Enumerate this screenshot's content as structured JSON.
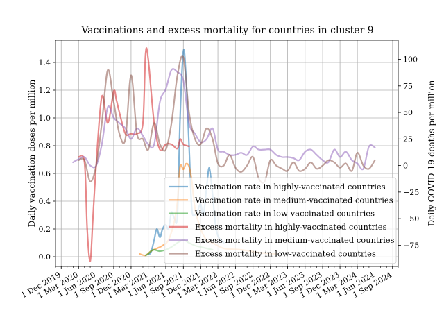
{
  "chart_data": {
    "type": "line",
    "title": "Vaccinations and excess mortality for countries in cluster 9",
    "ylabel_left": "Daily vaccination doses per million",
    "ylabel_right": "Daily COVID-19 deaths per million",
    "ylim_left": [
      -0.07,
      1.56
    ],
    "ylim_right": [
      -95,
      118
    ],
    "xlim": [
      "2019-11-01",
      "2024-10-01"
    ],
    "grid": true,
    "legend_position": "center-right",
    "x_ticks": [
      "2019-12-01",
      "2020-03-01",
      "2020-06-01",
      "2020-09-01",
      "2020-12-01",
      "2021-03-01",
      "2021-06-01",
      "2021-09-01",
      "2021-12-01",
      "2022-03-01",
      "2022-06-01",
      "2022-09-01",
      "2022-12-01",
      "2023-03-01",
      "2023-06-01",
      "2023-09-01",
      "2023-12-01",
      "2024-03-01",
      "2024-06-01",
      "2024-09-01"
    ],
    "x_tick_labels": [
      "1 Dec 2019",
      "1 Mar 2020",
      "1 Jun 2020",
      "1 Sep 2020",
      "1 Dec 2020",
      "1 Mar 2021",
      "1 Jun 2021",
      "1 Sep 2021",
      "1 Dec 2021",
      "1 Mar 2022",
      "1 Jun 2022",
      "1 Sep 2022",
      "1 Dec 2022",
      "1 Mar 2023",
      "1 Jun 2023",
      "1 Sep 2023",
      "1 Dec 2023",
      "1 Mar 2024",
      "1 Jun 2024",
      "1 Sep 2024"
    ],
    "y_ticks_left": [
      0.0,
      0.2,
      0.4,
      0.6,
      0.8,
      1.0,
      1.2,
      1.4
    ],
    "y_tick_labels_left": [
      "0.0",
      "0.2",
      "0.4",
      "0.6",
      "0.8",
      "1.0",
      "1.2",
      "1.4"
    ],
    "y_ticks_right": [
      -75,
      -50,
      -25,
      0,
      25,
      50,
      75,
      100
    ],
    "y_tick_labels_right": [
      "−75",
      "−50",
      "−25",
      "0",
      "25",
      "50",
      "75",
      "100"
    ],
    "series": [
      {
        "name": "Vaccination rate in highly-vaccinated countries",
        "color": "#1f77b4",
        "axis": "left",
        "points": [
          [
            "2021-03-01",
            0.02
          ],
          [
            "2021-03-15",
            0.03
          ],
          [
            "2021-04-01",
            0.12
          ],
          [
            "2021-04-15",
            0.2
          ],
          [
            "2021-05-01",
            0.14
          ],
          [
            "2021-05-15",
            0.2
          ],
          [
            "2021-06-01",
            0.23
          ],
          [
            "2021-06-15",
            0.2
          ],
          [
            "2021-07-01",
            0.32
          ],
          [
            "2021-07-15",
            0.28
          ],
          [
            "2021-08-01",
            0.3
          ],
          [
            "2021-08-15",
            1.0
          ],
          [
            "2021-09-01",
            1.48
          ],
          [
            "2021-09-15",
            1.3
          ],
          [
            "2021-10-01",
            0.8
          ],
          [
            "2021-10-15",
            0.35
          ],
          [
            "2021-11-01",
            0.3
          ],
          [
            "2021-11-15",
            0.33
          ],
          [
            "2021-12-01",
            0.38
          ],
          [
            "2021-12-15",
            0.3
          ],
          [
            "2022-01-01",
            0.5
          ],
          [
            "2022-01-15",
            0.64
          ],
          [
            "2022-02-01",
            0.45
          ],
          [
            "2022-02-15",
            0.25
          ],
          [
            "2022-03-01",
            0.15
          ],
          [
            "2022-04-01",
            0.1
          ]
        ]
      },
      {
        "name": "Vaccination rate in medium-vaccinated countries",
        "color": "#ff7f0e",
        "axis": "left",
        "points": [
          [
            "2021-01-15",
            0.02
          ],
          [
            "2021-02-15",
            0.01
          ],
          [
            "2021-03-15",
            0.04
          ],
          [
            "2021-04-15",
            0.06
          ],
          [
            "2021-05-15",
            0.08
          ],
          [
            "2021-06-15",
            0.12
          ],
          [
            "2021-07-15",
            0.25
          ],
          [
            "2021-08-01",
            0.4
          ],
          [
            "2021-08-15",
            0.65
          ],
          [
            "2021-09-01",
            0.63
          ],
          [
            "2021-09-15",
            0.67
          ],
          [
            "2021-10-01",
            0.65
          ],
          [
            "2021-10-15",
            0.55
          ],
          [
            "2021-11-01",
            0.35
          ],
          [
            "2021-12-01",
            0.2
          ],
          [
            "2022-01-01",
            0.12
          ],
          [
            "2022-02-01",
            0.1
          ],
          [
            "2022-04-01",
            0.06
          ],
          [
            "2022-07-01",
            0.05
          ],
          [
            "2022-10-01",
            0.03
          ],
          [
            "2023-01-01",
            0.02
          ]
        ]
      },
      {
        "name": "Vaccination rate in low-vaccinated countries",
        "color": "#2ca02c",
        "axis": "left",
        "points": [
          [
            "2021-02-15",
            0.01
          ],
          [
            "2021-03-01",
            0.02
          ],
          [
            "2021-03-15",
            0.04
          ],
          [
            "2021-04-01",
            0.05
          ],
          [
            "2021-05-01",
            0.04
          ],
          [
            "2021-06-01",
            0.05
          ],
          [
            "2021-07-01",
            0.07
          ],
          [
            "2021-08-01",
            0.1
          ],
          [
            "2021-09-01",
            0.12
          ],
          [
            "2021-10-01",
            0.1
          ],
          [
            "2021-11-01",
            0.08
          ],
          [
            "2021-12-01",
            0.07
          ],
          [
            "2022-02-01",
            0.05
          ]
        ]
      },
      {
        "name": "Excess mortality in highly-vaccinated countries",
        "color": "#d62728",
        "axis": "right",
        "points": [
          [
            "2020-03-01",
            8
          ],
          [
            "2020-04-01",
            3
          ],
          [
            "2020-04-15",
            -60
          ],
          [
            "2020-05-01",
            -90
          ],
          [
            "2020-05-15",
            -50
          ],
          [
            "2020-06-01",
            0
          ],
          [
            "2020-07-01",
            65
          ],
          [
            "2020-08-01",
            40
          ],
          [
            "2020-09-01",
            70
          ],
          [
            "2020-09-15",
            62
          ],
          [
            "2020-10-01",
            50
          ],
          [
            "2020-11-01",
            30
          ],
          [
            "2020-12-01",
            30
          ],
          [
            "2021-01-01",
            30
          ],
          [
            "2021-02-01",
            40
          ],
          [
            "2021-02-15",
            105
          ],
          [
            "2021-03-01",
            100
          ],
          [
            "2021-04-01",
            40
          ],
          [
            "2021-05-01",
            15
          ],
          [
            "2021-06-01",
            20
          ],
          [
            "2021-07-01",
            20
          ],
          [
            "2021-08-01",
            16
          ],
          [
            "2021-08-15",
            25
          ],
          [
            "2021-09-01",
            20
          ],
          [
            "2021-10-01",
            18
          ]
        ]
      },
      {
        "name": "Excess mortality in medium-vaccinated countries",
        "color": "#9467bd",
        "axis": "right",
        "points": [
          [
            "2020-02-01",
            3
          ],
          [
            "2020-03-01",
            6
          ],
          [
            "2020-04-01",
            8
          ],
          [
            "2020-05-01",
            0
          ],
          [
            "2020-06-01",
            0
          ],
          [
            "2020-07-01",
            20
          ],
          [
            "2020-08-01",
            55
          ],
          [
            "2020-09-01",
            45
          ],
          [
            "2020-10-01",
            40
          ],
          [
            "2020-11-01",
            35
          ],
          [
            "2020-12-01",
            25
          ],
          [
            "2021-01-01",
            35
          ],
          [
            "2021-02-01",
            28
          ],
          [
            "2021-03-01",
            20
          ],
          [
            "2021-04-01",
            20
          ],
          [
            "2021-05-01",
            60
          ],
          [
            "2021-06-01",
            72
          ],
          [
            "2021-07-01",
            90
          ],
          [
            "2021-08-01",
            88
          ],
          [
            "2021-09-01",
            80
          ],
          [
            "2021-10-01",
            40
          ],
          [
            "2021-11-01",
            30
          ],
          [
            "2021-12-01",
            22
          ],
          [
            "2022-01-01",
            25
          ],
          [
            "2022-02-01",
            35
          ],
          [
            "2022-03-01",
            15
          ],
          [
            "2022-04-01",
            13
          ],
          [
            "2022-05-01",
            10
          ],
          [
            "2022-06-01",
            10
          ],
          [
            "2022-07-01",
            12
          ],
          [
            "2022-08-01",
            10
          ],
          [
            "2022-09-01",
            18
          ],
          [
            "2022-10-01",
            15
          ],
          [
            "2022-11-01",
            15
          ],
          [
            "2022-12-01",
            15
          ],
          [
            "2023-01-01",
            10
          ],
          [
            "2023-02-01",
            8
          ],
          [
            "2023-03-01",
            8
          ],
          [
            "2023-04-01",
            7
          ],
          [
            "2023-05-01",
            5
          ],
          [
            "2023-06-01",
            13
          ],
          [
            "2023-07-01",
            15
          ],
          [
            "2023-08-01",
            10
          ],
          [
            "2023-09-01",
            5
          ],
          [
            "2023-10-01",
            3
          ],
          [
            "2023-11-01",
            15
          ],
          [
            "2023-12-01",
            8
          ],
          [
            "2024-01-01",
            13
          ],
          [
            "2024-02-01",
            5
          ],
          [
            "2024-03-01",
            2
          ],
          [
            "2024-04-01",
            -3
          ],
          [
            "2024-05-01",
            18
          ],
          [
            "2024-06-01",
            17
          ]
        ]
      },
      {
        "name": "Excess mortality in low-vaccinated countries",
        "color": "#8c564b",
        "axis": "right",
        "points": [
          [
            "2020-03-01",
            5
          ],
          [
            "2020-04-01",
            5
          ],
          [
            "2020-05-01",
            -15
          ],
          [
            "2020-06-01",
            0
          ],
          [
            "2020-07-01",
            40
          ],
          [
            "2020-08-01",
            90
          ],
          [
            "2020-09-01",
            60
          ],
          [
            "2020-10-01",
            30
          ],
          [
            "2020-11-01",
            25
          ],
          [
            "2020-12-01",
            85
          ],
          [
            "2021-01-01",
            30
          ],
          [
            "2021-02-01",
            25
          ],
          [
            "2021-03-01",
            15
          ],
          [
            "2021-04-01",
            40
          ],
          [
            "2021-05-01",
            20
          ],
          [
            "2021-06-01",
            15
          ],
          [
            "2021-07-01",
            40
          ],
          [
            "2021-08-01",
            85
          ],
          [
            "2021-09-01",
            102
          ],
          [
            "2021-10-01",
            50
          ],
          [
            "2021-11-01",
            25
          ],
          [
            "2021-12-01",
            20
          ],
          [
            "2022-01-01",
            35
          ],
          [
            "2022-02-01",
            25
          ],
          [
            "2022-03-01",
            2
          ],
          [
            "2022-04-01",
            0
          ],
          [
            "2022-05-01",
            10
          ],
          [
            "2022-06-01",
            -2
          ],
          [
            "2022-07-01",
            -6
          ],
          [
            "2022-08-01",
            0
          ],
          [
            "2022-09-01",
            8
          ],
          [
            "2022-10-01",
            -12
          ],
          [
            "2022-11-01",
            -15
          ],
          [
            "2022-12-01",
            5
          ],
          [
            "2023-01-01",
            0
          ],
          [
            "2023-02-01",
            -3
          ],
          [
            "2023-03-01",
            -5
          ],
          [
            "2023-04-01",
            3
          ],
          [
            "2023-05-01",
            -5
          ],
          [
            "2023-06-01",
            -3
          ],
          [
            "2023-07-01",
            3
          ],
          [
            "2023-08-01",
            -3
          ],
          [
            "2023-09-01",
            0
          ],
          [
            "2023-10-01",
            5
          ],
          [
            "2023-11-01",
            3
          ],
          [
            "2023-12-01",
            -2
          ],
          [
            "2024-01-01",
            2
          ],
          [
            "2024-02-01",
            -5
          ],
          [
            "2024-03-01",
            12
          ],
          [
            "2024-04-01",
            0
          ],
          [
            "2024-05-01",
            -3
          ],
          [
            "2024-06-01",
            5
          ]
        ]
      }
    ]
  }
}
